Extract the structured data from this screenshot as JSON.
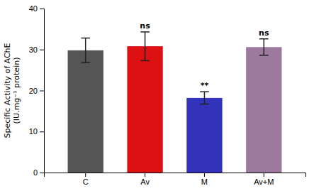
{
  "chart_data": {
    "type": "bar",
    "categories": [
      "C",
      "Av",
      "M",
      "Av+M"
    ],
    "values": [
      29.8,
      30.8,
      18.2,
      30.6
    ],
    "errors": [
      3.0,
      3.5,
      1.5,
      2.0
    ],
    "colors": [
      "#555555",
      "#dd1111",
      "#3333bb",
      "#9b7a9e"
    ],
    "annotations": [
      null,
      "ns",
      "**",
      "ns"
    ],
    "ylabel": [
      "Specific Activity of AChE",
      "(IU.mg⁻¹ protein)"
    ],
    "ylim": [
      0,
      40
    ],
    "yticks": [
      0,
      10,
      20,
      30,
      40
    ],
    "grid": false
  }
}
